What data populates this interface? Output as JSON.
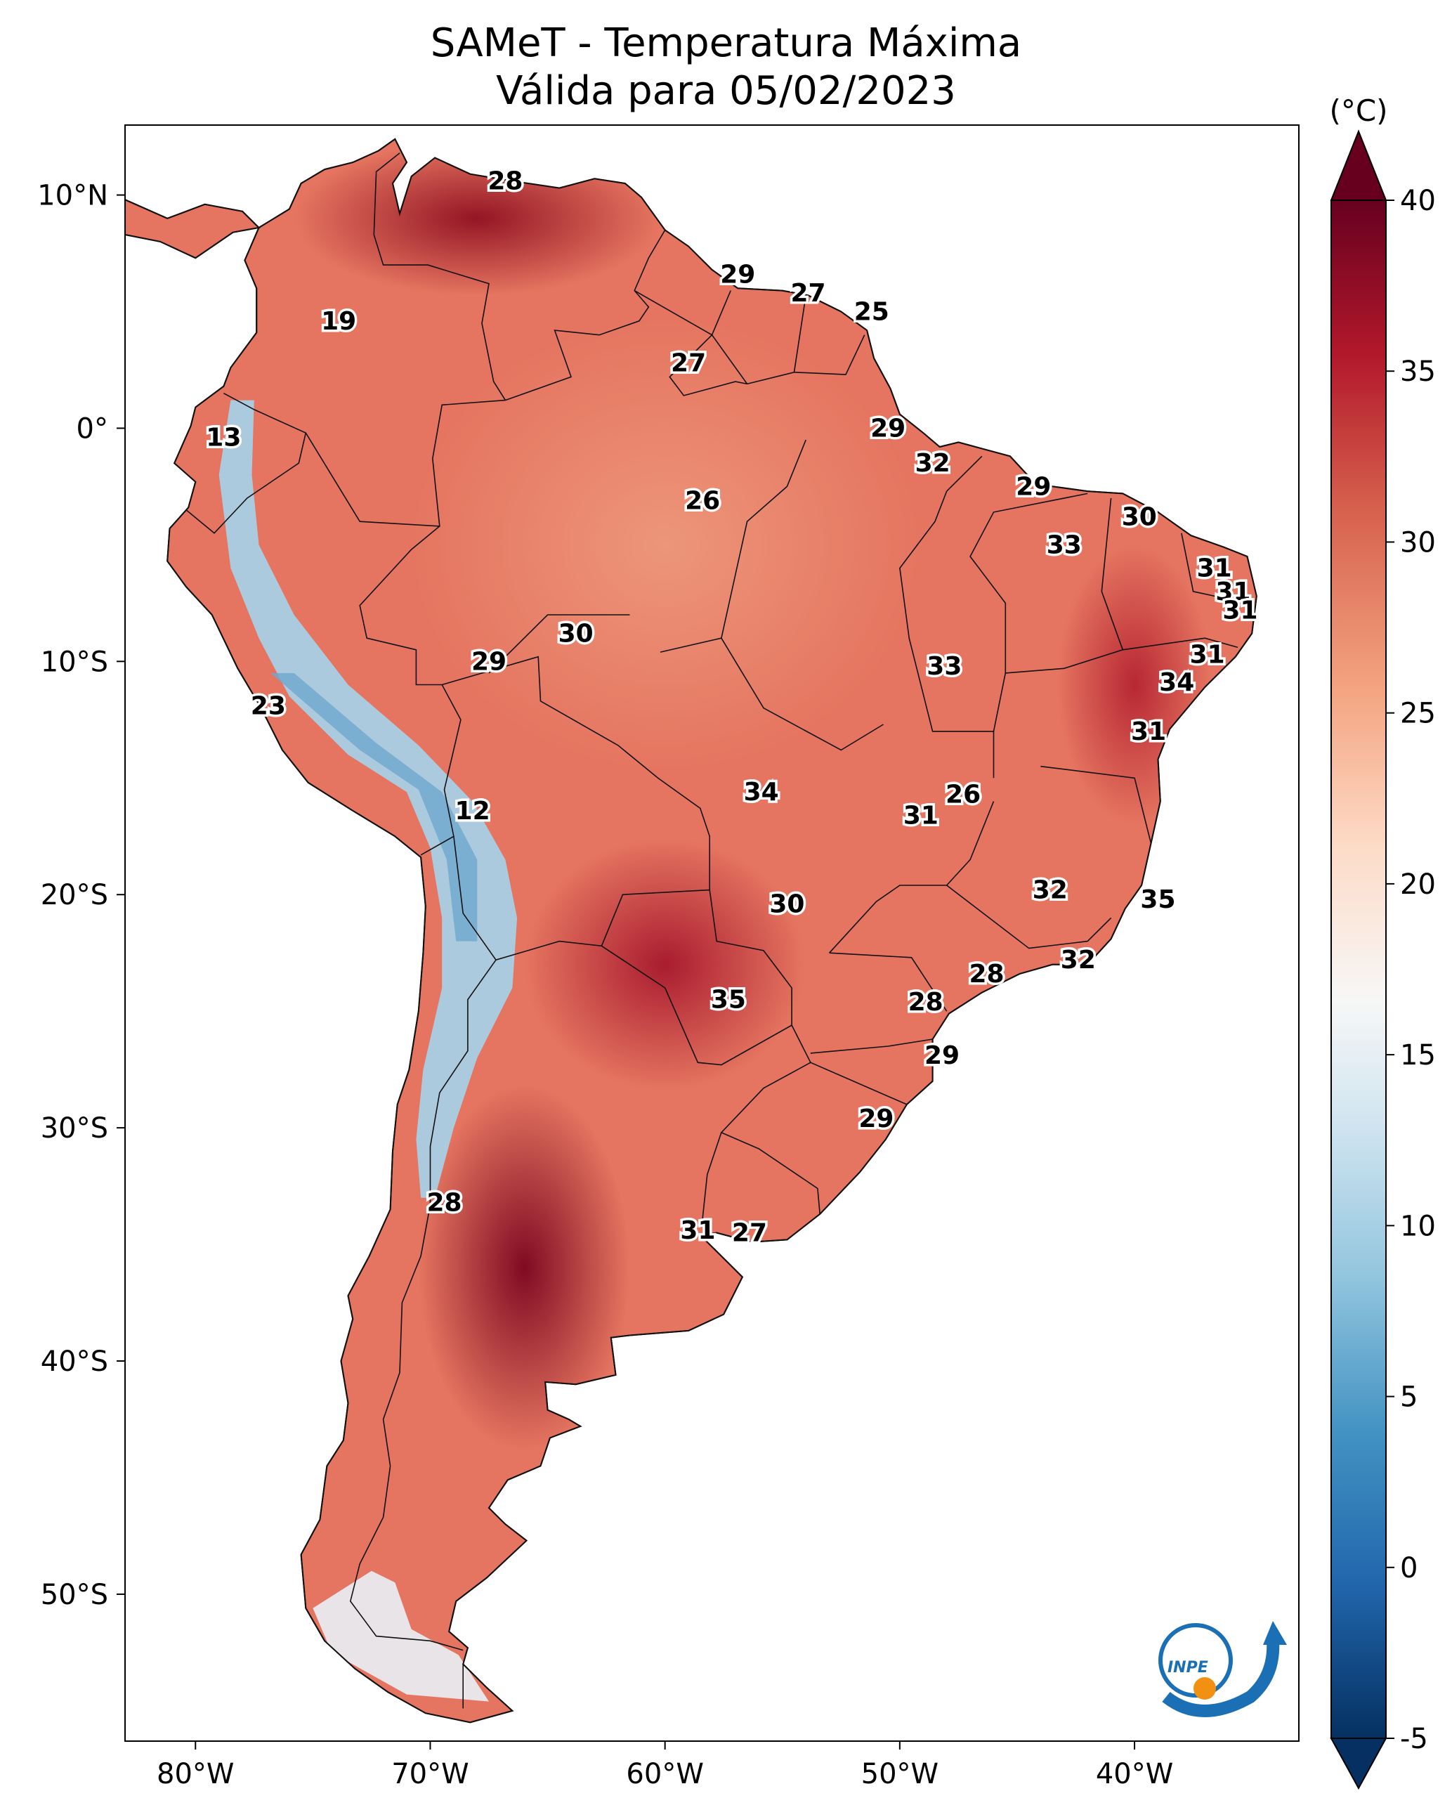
{
  "title": {
    "line1": "SAMeT - Temperatura Máxima",
    "line2": "Válida para 05/02/2023"
  },
  "map": {
    "lat_ticks": [
      "10°N",
      "0°",
      "10°S",
      "20°S",
      "30°S",
      "40°S",
      "50°S"
    ],
    "lon_ticks": [
      "80°W",
      "70°W",
      "60°W",
      "50°W",
      "40°W"
    ],
    "value_labels": [
      {
        "text": "28",
        "lon": -66.8,
        "lat": 10.6
      },
      {
        "text": "29",
        "lon": -56.9,
        "lat": 6.6
      },
      {
        "text": "27",
        "lon": -53.9,
        "lat": 5.8
      },
      {
        "text": "25",
        "lon": -51.2,
        "lat": 5.0
      },
      {
        "text": "19",
        "lon": -73.9,
        "lat": 4.6
      },
      {
        "text": "27",
        "lon": -59.0,
        "lat": 2.8
      },
      {
        "text": "29",
        "lon": -50.5,
        "lat": 0.0
      },
      {
        "text": "13",
        "lon": -78.8,
        "lat": -0.4
      },
      {
        "text": "32",
        "lon": -48.6,
        "lat": -1.5
      },
      {
        "text": "29",
        "lon": -44.3,
        "lat": -2.5
      },
      {
        "text": "26",
        "lon": -58.4,
        "lat": -3.1
      },
      {
        "text": "30",
        "lon": -39.8,
        "lat": -3.8
      },
      {
        "text": "33",
        "lon": -43.0,
        "lat": -5.0
      },
      {
        "text": "31",
        "lon": -36.6,
        "lat": -6.0
      },
      {
        "text": "31",
        "lon": -35.8,
        "lat": -7.0
      },
      {
        "text": "31",
        "lon": -35.5,
        "lat": -7.8
      },
      {
        "text": "30",
        "lon": -63.8,
        "lat": -8.8
      },
      {
        "text": "31",
        "lon": -36.9,
        "lat": -9.7
      },
      {
        "text": "29",
        "lon": -67.5,
        "lat": -10.0
      },
      {
        "text": "33",
        "lon": -48.1,
        "lat": -10.2
      },
      {
        "text": "34",
        "lon": -38.2,
        "lat": -10.9
      },
      {
        "text": "23",
        "lon": -76.9,
        "lat": -11.9
      },
      {
        "text": "31",
        "lon": -39.4,
        "lat": -13.0
      },
      {
        "text": "26",
        "lon": -47.3,
        "lat": -15.7
      },
      {
        "text": "34",
        "lon": -55.9,
        "lat": -15.6
      },
      {
        "text": "31",
        "lon": -49.1,
        "lat": -16.6
      },
      {
        "text": "12",
        "lon": -68.2,
        "lat": -16.4
      },
      {
        "text": "32",
        "lon": -43.6,
        "lat": -19.8
      },
      {
        "text": "35",
        "lon": -39.0,
        "lat": -20.2
      },
      {
        "text": "30",
        "lon": -54.8,
        "lat": -20.4
      },
      {
        "text": "32",
        "lon": -42.4,
        "lat": -22.8
      },
      {
        "text": "28",
        "lon": -46.3,
        "lat": -23.4
      },
      {
        "text": "35",
        "lon": -57.3,
        "lat": -24.5
      },
      {
        "text": "28",
        "lon": -48.9,
        "lat": -24.6
      },
      {
        "text": "29",
        "lon": -48.2,
        "lat": -26.9
      },
      {
        "text": "29",
        "lon": -51.0,
        "lat": -29.6
      },
      {
        "text": "28",
        "lon": -69.4,
        "lat": -33.2
      },
      {
        "text": "31",
        "lon": -58.6,
        "lat": -34.4
      },
      {
        "text": "27",
        "lon": -56.4,
        "lat": -34.5
      }
    ]
  },
  "colorbar": {
    "unit": "(°C)",
    "ticks": [
      "40",
      "35",
      "30",
      "25",
      "20",
      "15",
      "10",
      "5",
      "0",
      "-5"
    ],
    "range": [
      -5,
      40
    ],
    "stops": [
      "#053061",
      "#2166ac",
      "#4393c3",
      "#92c5de",
      "#d1e5f0",
      "#f7f7f7",
      "#fddbc7",
      "#f4a582",
      "#d6604d",
      "#b2182b",
      "#67001f"
    ]
  },
  "logo": {
    "text": "INPE",
    "icon": "inpe-logo-icon"
  }
}
